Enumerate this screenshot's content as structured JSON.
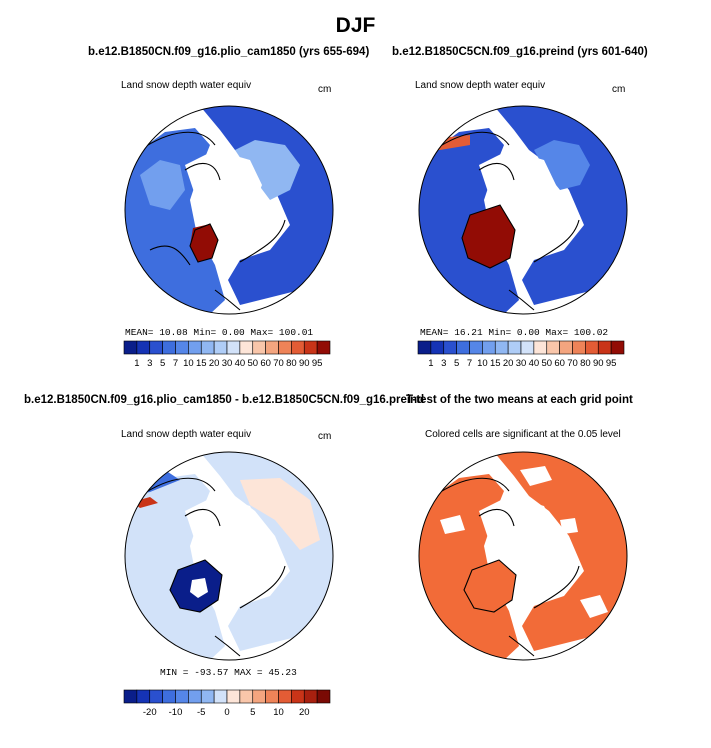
{
  "figure": {
    "title": "DJF"
  },
  "panels": [
    {
      "title": "b.e12.B1850CN.f09_g16.plio_cam1850 (yrs 655-694)",
      "subtitle": "Land snow depth water equiv",
      "units": "cm",
      "stats": "MEAN=   10.08   Min=     0.00   Max=  100.01"
    },
    {
      "title": "b.e12.B1850C5CN.f09_g16.preind (yrs 601-640)",
      "subtitle": "Land snow depth water equiv",
      "units": "cm",
      "stats": "MEAN=   16.21   Min=     0.00   Max=  100.02"
    },
    {
      "title": "b.e12.B1850CN.f09_g16.plio_cam1850 - b.e12.B1850C5CN.f09_g16.preind",
      "subtitle": "Land snow depth water equiv",
      "units": "cm",
      "stats": "MIN = -93.57  MAX =  45.23"
    },
    {
      "title": "T-test of the two means at each grid point",
      "subtitle": "Colored cells are significant at the 0.05 level",
      "units": "",
      "stats": ""
    }
  ],
  "chart_data": [
    {
      "type": "heatmap",
      "projection": "north-polar-stereographic",
      "title": "b.e12.B1850CN.f09_g16.plio_cam1850 (yrs 655-694)",
      "variable": "Land snow depth water equiv",
      "units": "cm",
      "mean": 10.08,
      "min": 0.0,
      "max": 100.01,
      "colorbar_levels": [
        1,
        3,
        5,
        7,
        10,
        15,
        20,
        30,
        40,
        50,
        60,
        70,
        80,
        90,
        95
      ],
      "colorbar_colors": [
        "#0a1e8a",
        "#1533b5",
        "#2a50cf",
        "#3e6ede",
        "#5586e8",
        "#729fee",
        "#90b7f2",
        "#afcdf7",
        "#d2e2f9",
        "#fde5d8",
        "#f9c6aa",
        "#f4a57f",
        "#ee8358",
        "#e35c35",
        "#c93418",
        "#920c05"
      ]
    },
    {
      "type": "heatmap",
      "projection": "north-polar-stereographic",
      "title": "b.e12.B1850C5CN.f09_g16.preind (yrs 601-640)",
      "variable": "Land snow depth water equiv",
      "units": "cm",
      "mean": 16.21,
      "min": 0.0,
      "max": 100.02,
      "colorbar_levels": [
        1,
        3,
        5,
        7,
        10,
        15,
        20,
        30,
        40,
        50,
        60,
        70,
        80,
        90,
        95
      ]
    },
    {
      "type": "heatmap",
      "projection": "north-polar-stereographic",
      "title": "b.e12.B1850CN.f09_g16.plio_cam1850 - b.e12.B1850C5CN.f09_g16.preind",
      "variable": "Land snow depth water equiv",
      "units": "cm",
      "min": -93.57,
      "max": 45.23,
      "colorbar_levels": [
        -25,
        -20,
        -15,
        -10,
        -7.5,
        -5,
        -2.5,
        0,
        2.5,
        5,
        7.5,
        10,
        15,
        20,
        25
      ],
      "colorbar_tick_labels": [
        "-20",
        "-10",
        "-5",
        "0",
        "5",
        "10",
        "20"
      ],
      "colorbar_colors": [
        "#0a1e8a",
        "#1533b5",
        "#2a50cf",
        "#3e6ede",
        "#5586e8",
        "#729fee",
        "#90b7f2",
        "#d2e2f9",
        "#fde5d8",
        "#f9c6aa",
        "#f4a57f",
        "#ee8358",
        "#e35c35",
        "#c93418",
        "#a8200f",
        "#7a0a04"
      ]
    },
    {
      "type": "heatmap",
      "projection": "north-polar-stereographic",
      "title": "T-test of the two means at each grid point",
      "note": "Colored cells are significant at the 0.05 level",
      "significant_color": "#f26b38"
    }
  ]
}
